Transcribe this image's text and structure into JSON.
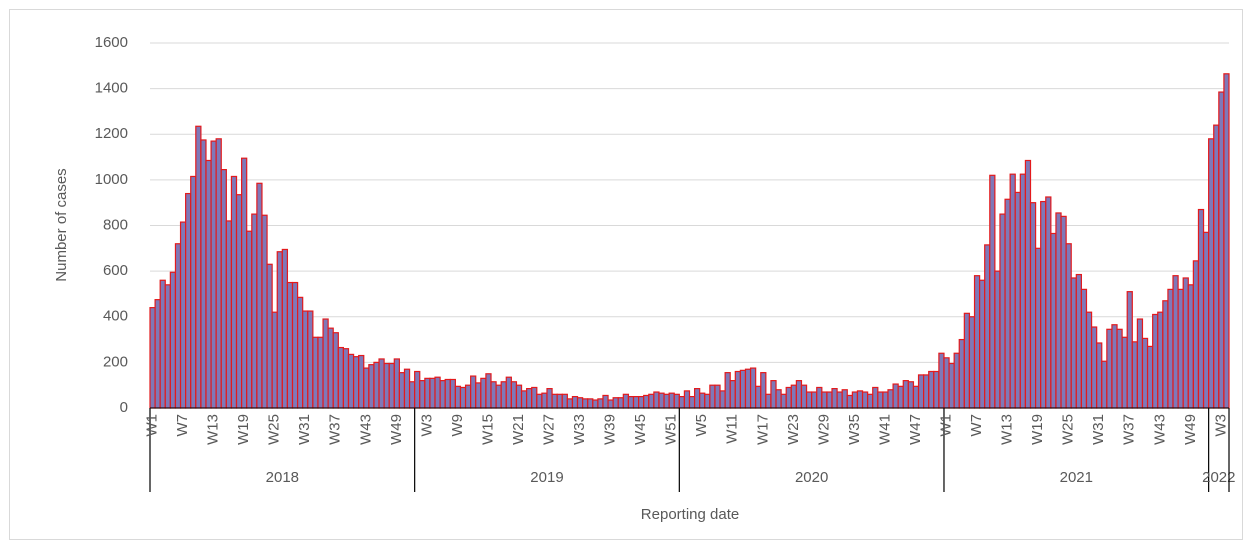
{
  "chart_data": {
    "type": "bar",
    "y_label": "Number of cases",
    "x_label": "Reporting date",
    "color": "#7f78b8",
    "edge_color": "#e31a1c",
    "grid": true,
    "ylim": [
      0,
      1600
    ],
    "yticks": [
      0,
      200,
      400,
      600,
      800,
      1000,
      1200,
      1400,
      1600
    ],
    "groups": [
      {
        "label": "2018",
        "categories": [
          "W1",
          null,
          null,
          null,
          null,
          null,
          "W7",
          null,
          null,
          null,
          null,
          null,
          "W13",
          null,
          null,
          null,
          null,
          null,
          "W19",
          null,
          null,
          null,
          null,
          null,
          "W25",
          null,
          null,
          null,
          null,
          null,
          "W31",
          null,
          null,
          null,
          null,
          null,
          "W37",
          null,
          null,
          null,
          null,
          null,
          "W43",
          null,
          null,
          null,
          null,
          null,
          "W49",
          null,
          null,
          null
        ]
      },
      {
        "label": "2019",
        "categories": [
          null,
          null,
          "W3",
          null,
          null,
          null,
          null,
          null,
          "W9",
          null,
          null,
          null,
          null,
          null,
          "W15",
          null,
          null,
          null,
          null,
          null,
          "W21",
          null,
          null,
          null,
          null,
          null,
          "W27",
          null,
          null,
          null,
          null,
          null,
          "W33",
          null,
          null,
          null,
          null,
          null,
          "W39",
          null,
          null,
          null,
          null,
          null,
          "W45",
          null,
          null,
          null,
          null,
          null,
          "W51",
          null
        ]
      },
      {
        "label": "2020",
        "categories": [
          null,
          null,
          null,
          null,
          "W5",
          null,
          null,
          null,
          null,
          null,
          "W11",
          null,
          null,
          null,
          null,
          null,
          "W17",
          null,
          null,
          null,
          null,
          null,
          "W23",
          null,
          null,
          null,
          null,
          null,
          "W29",
          null,
          null,
          null,
          null,
          null,
          "W35",
          null,
          null,
          null,
          null,
          null,
          "W41",
          null,
          null,
          null,
          null,
          null,
          "W47",
          null,
          null,
          null,
          null,
          null
        ]
      },
      {
        "label": "2021",
        "categories": [
          "W1",
          null,
          null,
          null,
          null,
          null,
          "W7",
          null,
          null,
          null,
          null,
          null,
          "W13",
          null,
          null,
          null,
          null,
          null,
          "W19",
          null,
          null,
          null,
          null,
          null,
          "W25",
          null,
          null,
          null,
          null,
          null,
          "W31",
          null,
          null,
          null,
          null,
          null,
          "W37",
          null,
          null,
          null,
          null,
          null,
          "W43",
          null,
          null,
          null,
          null,
          null,
          "W49",
          null,
          null,
          null
        ]
      },
      {
        "label": "2022",
        "categories": [
          null,
          null,
          "W3",
          null
        ]
      }
    ],
    "values": [
      440,
      475,
      560,
      540,
      595,
      720,
      815,
      940,
      1015,
      1235,
      1175,
      1085,
      1170,
      1180,
      1045,
      820,
      1015,
      935,
      1095,
      775,
      850,
      985,
      845,
      630,
      420,
      685,
      695,
      550,
      550,
      485,
      425,
      425,
      310,
      310,
      390,
      350,
      330,
      265,
      260,
      235,
      225,
      230,
      175,
      190,
      200,
      215,
      195,
      195,
      215,
      155,
      170,
      115,
      160,
      120,
      130,
      130,
      135,
      120,
      125,
      125,
      95,
      90,
      100,
      140,
      110,
      130,
      150,
      115,
      100,
      115,
      135,
      115,
      100,
      75,
      85,
      90,
      60,
      65,
      85,
      60,
      60,
      60,
      40,
      50,
      45,
      40,
      40,
      35,
      40,
      55,
      35,
      45,
      45,
      60,
      50,
      50,
      50,
      55,
      60,
      70,
      65,
      60,
      65,
      60,
      50,
      75,
      50,
      85,
      65,
      60,
      100,
      100,
      75,
      155,
      120,
      160,
      165,
      170,
      175,
      95,
      155,
      60,
      120,
      80,
      60,
      90,
      100,
      120,
      100,
      70,
      70,
      90,
      70,
      70,
      85,
      70,
      80,
      55,
      70,
      75,
      70,
      60,
      90,
      70,
      70,
      80,
      105,
      95,
      120,
      115,
      95,
      145,
      145,
      160,
      160,
      240,
      220,
      195,
      240,
      300,
      415,
      400,
      580,
      560,
      715,
      1020,
      600,
      850,
      915,
      1025,
      945,
      1025,
      1085,
      900,
      700,
      905,
      925,
      765,
      855,
      840,
      720,
      570,
      585,
      520,
      420,
      355,
      285,
      205,
      345,
      365,
      345,
      310,
      510,
      290,
      390,
      305,
      270,
      410,
      420,
      470,
      520,
      580,
      520,
      570,
      540,
      645,
      870,
      770,
      1180,
      1240,
      1385,
      1465
    ]
  }
}
